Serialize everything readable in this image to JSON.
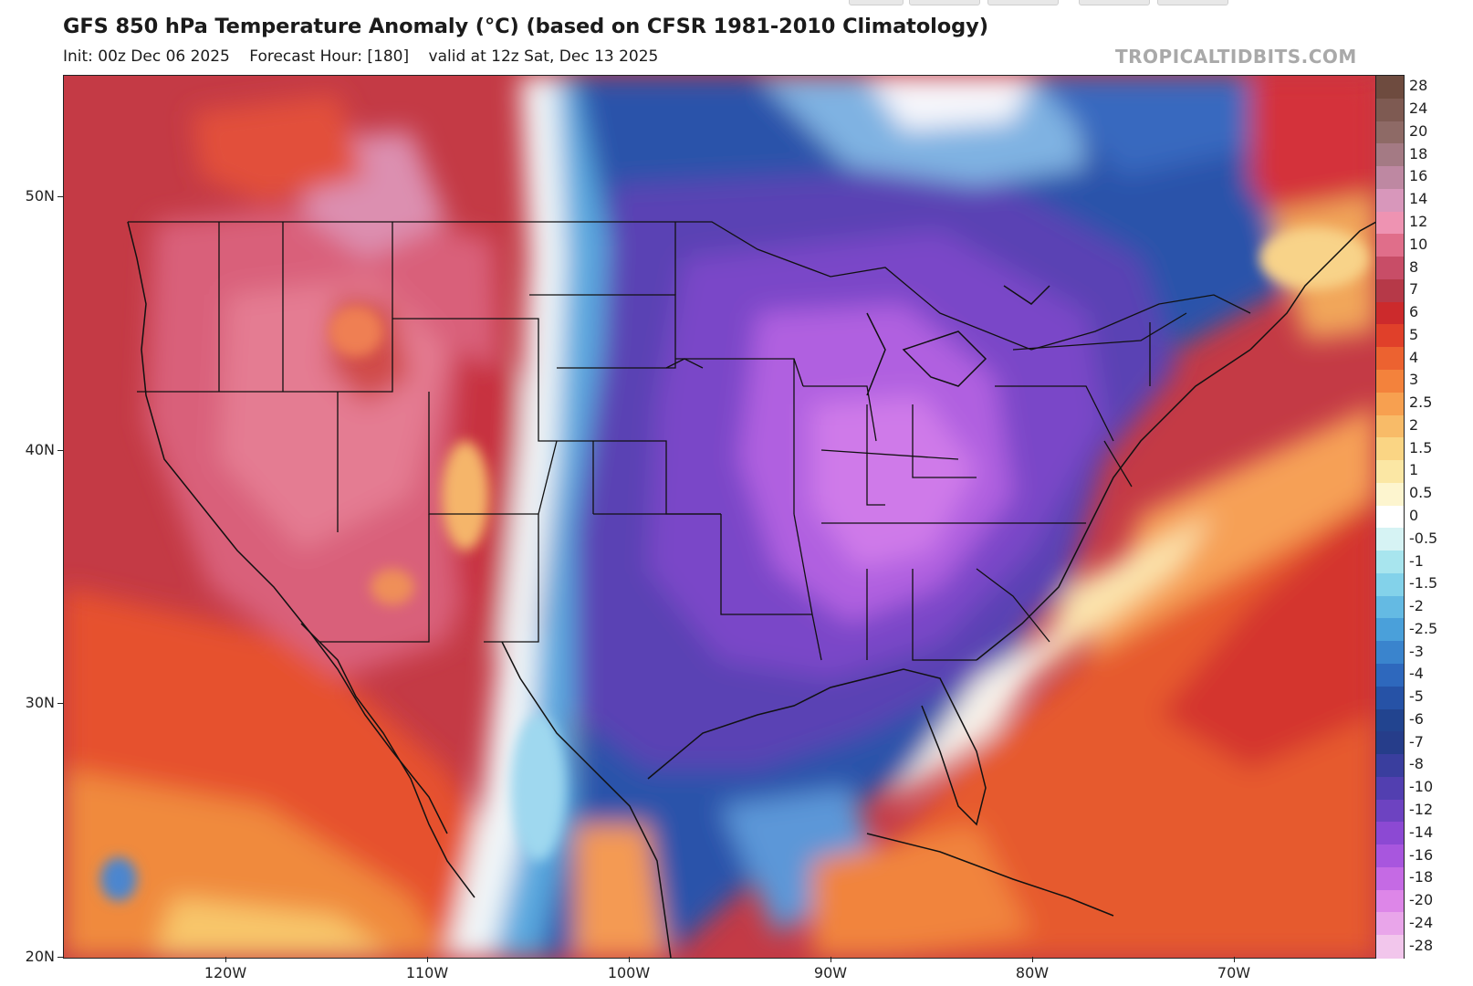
{
  "header": {
    "title": "GFS 850 hPa Temperature Anomaly (°C) (based on CFSR 1981-2010 Climatology)",
    "init": "Init: 00z Dec 06 2025",
    "forecast_hour": "Forecast Hour: [180]",
    "valid": "valid at 12z Sat, Dec 13 2025",
    "watermark": "TROPICALTIDBITS.COM"
  },
  "axes": {
    "lat_labels": [
      "50N",
      "40N",
      "30N",
      "20N"
    ],
    "lon_labels": [
      "120W",
      "110W",
      "100W",
      "90W",
      "80W",
      "70W"
    ]
  },
  "colorbar": {
    "levels": [
      "28",
      "24",
      "20",
      "18",
      "16",
      "14",
      "12",
      "10",
      "8",
      "7",
      "6",
      "5",
      "4",
      "3",
      "2.5",
      "2",
      "1.5",
      "1",
      "0.5",
      "0",
      "-0.5",
      "-1",
      "-1.5",
      "-2",
      "-2.5",
      "-3",
      "-4",
      "-5",
      "-6",
      "-7",
      "-8",
      "-10",
      "-12",
      "-14",
      "-16",
      "-18",
      "-20",
      "-24",
      "-28"
    ],
    "colors": [
      "#6e4b3f",
      "#7e5a52",
      "#8e6a66",
      "#a47a84",
      "#be88a2",
      "#d897bb",
      "#ee93b2",
      "#e06e8a",
      "#c84d67",
      "#b63948",
      "#cc2a2c",
      "#e0402a",
      "#ec6230",
      "#f3823c",
      "#f7a050",
      "#f8bb68",
      "#fad584",
      "#fbe7a4",
      "#fdf5cf",
      "#ffffff",
      "#d6f3f4",
      "#a8e5ee",
      "#83d2ea",
      "#64bae3",
      "#4aa0da",
      "#3a84cd",
      "#2e68bd",
      "#2652a6",
      "#22448f",
      "#263d8a",
      "#3a3e9e",
      "#523fb0",
      "#6d43c1",
      "#8c49d3",
      "#a856de",
      "#c56ae4",
      "#dd86e8",
      "#e9a5ea",
      "#f2c6ec"
    ]
  },
  "colors": {
    "ocean_warm": "#c43a45",
    "west_warm": "#d85a72",
    "east_cold": "#8a48cf",
    "cold_core": "#c267e6",
    "warm_atlantic": "#e8552e"
  }
}
